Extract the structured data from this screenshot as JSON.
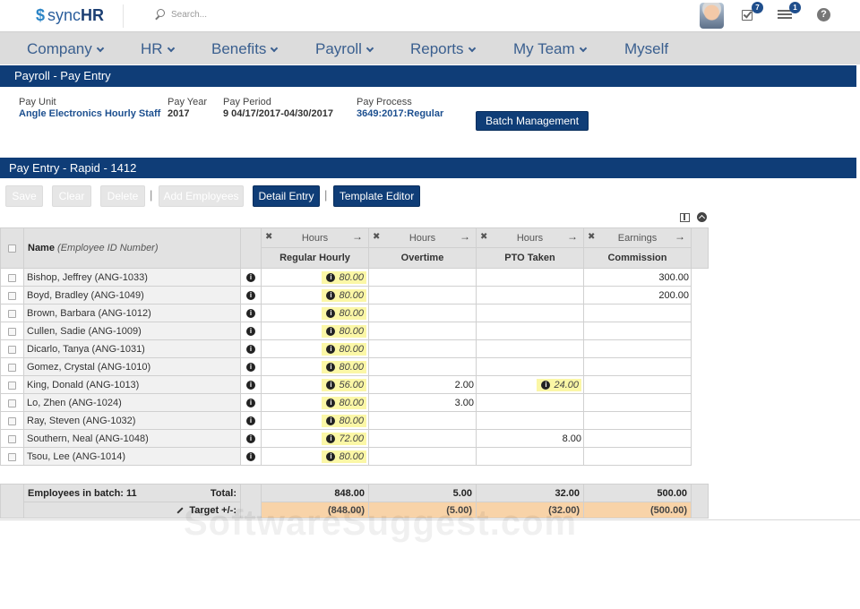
{
  "app": {
    "logo_mark": "$",
    "logo_text_a": "sync",
    "logo_text_b": "HR",
    "search_placeholder": "Search...",
    "badges": {
      "tasks": "7",
      "messages": "1"
    },
    "help_glyph": "?"
  },
  "nav": {
    "items": [
      {
        "label": "Company",
        "has_caret": true
      },
      {
        "label": "HR",
        "has_caret": true
      },
      {
        "label": "Benefits",
        "has_caret": true
      },
      {
        "label": "Payroll",
        "has_caret": true
      },
      {
        "label": "Reports",
        "has_caret": true
      },
      {
        "label": "My Team",
        "has_caret": true
      },
      {
        "label": "Myself",
        "has_caret": false
      }
    ]
  },
  "page": {
    "title": "Payroll - Pay Entry",
    "pay_unit_label": "Pay Unit",
    "pay_unit_value": "Angle Electronics Hourly Staff",
    "pay_year_label": "Pay Year",
    "pay_year_value": "2017",
    "pay_period_label": "Pay Period",
    "pay_period_value": "9 04/17/2017-04/30/2017",
    "pay_process_label": "Pay Process",
    "pay_process_value": "3649:2017:Regular",
    "batch_button": "Batch Management"
  },
  "entry": {
    "title": "Pay Entry - Rapid - 1412",
    "toolbar": {
      "save": "Save",
      "clear": "Clear",
      "delete": "Delete",
      "add_employees": "Add Employees",
      "separator": "|",
      "detail_entry": "Detail Entry",
      "template_editor": "Template Editor"
    },
    "grid": {
      "name_header": "Name",
      "name_header_sub": "(Employee ID Number)",
      "columns": [
        {
          "type": "Hours",
          "name": "Regular Hourly"
        },
        {
          "type": "Hours",
          "name": "Overtime"
        },
        {
          "type": "Hours",
          "name": "PTO Taken"
        },
        {
          "type": "Earnings",
          "name": "Commission"
        }
      ],
      "rows": [
        {
          "name": "Bishop, Jeffrey (ANG-1033)",
          "regular": "80.00",
          "overtime": "",
          "pto": "",
          "commission": "300.00"
        },
        {
          "name": "Boyd, Bradley (ANG-1049)",
          "regular": "80.00",
          "overtime": "",
          "pto": "",
          "commission": "200.00"
        },
        {
          "name": "Brown, Barbara (ANG-1012)",
          "regular": "80.00",
          "overtime": "",
          "pto": "",
          "commission": ""
        },
        {
          "name": "Cullen, Sadie (ANG-1009)",
          "regular": "80.00",
          "overtime": "",
          "pto": "",
          "commission": ""
        },
        {
          "name": "Dicarlo, Tanya (ANG-1031)",
          "regular": "80.00",
          "overtime": "",
          "pto": "",
          "commission": ""
        },
        {
          "name": "Gomez, Crystal (ANG-1010)",
          "regular": "80.00",
          "overtime": "",
          "pto": "",
          "commission": ""
        },
        {
          "name": "King, Donald (ANG-1013)",
          "regular": "56.00",
          "overtime": "2.00",
          "pto": "24.00",
          "pto_highlight": true,
          "commission": ""
        },
        {
          "name": "Lo, Zhen (ANG-1024)",
          "regular": "80.00",
          "overtime": "3.00",
          "pto": "",
          "commission": ""
        },
        {
          "name": "Ray, Steven (ANG-1032)",
          "regular": "80.00",
          "overtime": "",
          "pto": "",
          "commission": ""
        },
        {
          "name": "Southern, Neal (ANG-1048)",
          "regular": "72.00",
          "overtime": "",
          "pto": "8.00",
          "commission": ""
        },
        {
          "name": "Tsou, Lee (ANG-1014)",
          "regular": "80.00",
          "overtime": "",
          "pto": "",
          "commission": ""
        }
      ],
      "footer": {
        "employees_label": "Employees in batch: 11",
        "total_label": "Total:",
        "target_label": "Target +/-:",
        "totals": [
          "848.00",
          "5.00",
          "32.00",
          "500.00"
        ],
        "targets": [
          "(848.00)",
          "(5.00)",
          "(32.00)",
          "(500.00)"
        ]
      }
    }
  },
  "watermark": "SoftwareSuggest.com",
  "colors": {
    "brand_navy": "#0f3d77",
    "nav_bg": "#dcdcdc",
    "highlight_yellow": "#fbf7a6",
    "target_orange": "#f8d3a8"
  }
}
